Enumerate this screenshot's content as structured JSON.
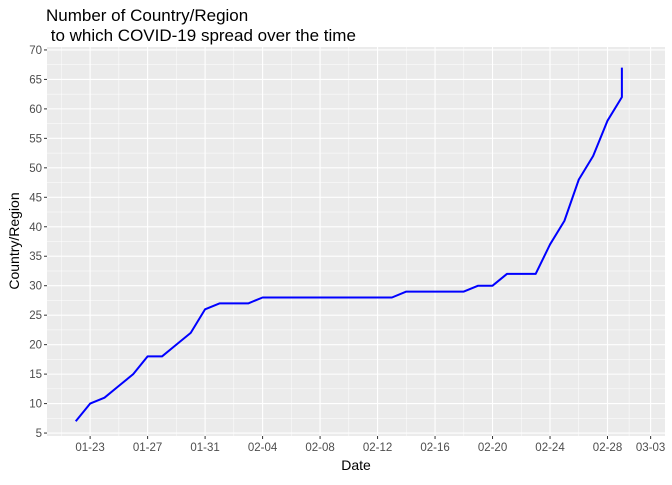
{
  "chart_data": {
    "type": "line",
    "title_line1": "Number of Country/Region",
    "title_line2": " to which COVID-19 spread over the time",
    "xlabel": "Date",
    "ylabel": "Country/Region",
    "x_ticks": [
      "01-23",
      "01-27",
      "01-31",
      "02-04",
      "02-08",
      "02-12",
      "02-16",
      "02-20",
      "02-24",
      "02-28",
      "03-03"
    ],
    "y_ticks": [
      5,
      10,
      15,
      20,
      25,
      30,
      35,
      40,
      45,
      50,
      55,
      60,
      65,
      70
    ],
    "ylim": [
      4.5,
      70.5
    ],
    "xlim": [
      "01-20",
      "03-04"
    ],
    "grid": true,
    "panel_background": "#ebebeb",
    "grid_color": "#ffffff",
    "series": [
      {
        "color": "#0000ff",
        "x": [
          "01-22",
          "01-23",
          "01-24",
          "01-25",
          "01-26",
          "01-27",
          "01-28",
          "01-29",
          "01-30",
          "01-31",
          "02-01",
          "02-02",
          "02-03",
          "02-04",
          "02-05",
          "02-06",
          "02-07",
          "02-08",
          "02-09",
          "02-10",
          "02-11",
          "02-12",
          "02-13",
          "02-14",
          "02-15",
          "02-16",
          "02-17",
          "02-18",
          "02-19",
          "02-20",
          "02-21",
          "02-22",
          "02-23",
          "02-24",
          "02-25",
          "02-26",
          "02-27",
          "02-28",
          "02-29",
          "03-01"
        ],
        "values": [
          7,
          10,
          11,
          13,
          15,
          18,
          18,
          20,
          22,
          26,
          27,
          27,
          27,
          28,
          28,
          28,
          28,
          28,
          28,
          28,
          28,
          28,
          28,
          29,
          29,
          29,
          29,
          29,
          30,
          30,
          32,
          32,
          32,
          37,
          41,
          48,
          52,
          58,
          62,
          67
        ]
      }
    ]
  }
}
